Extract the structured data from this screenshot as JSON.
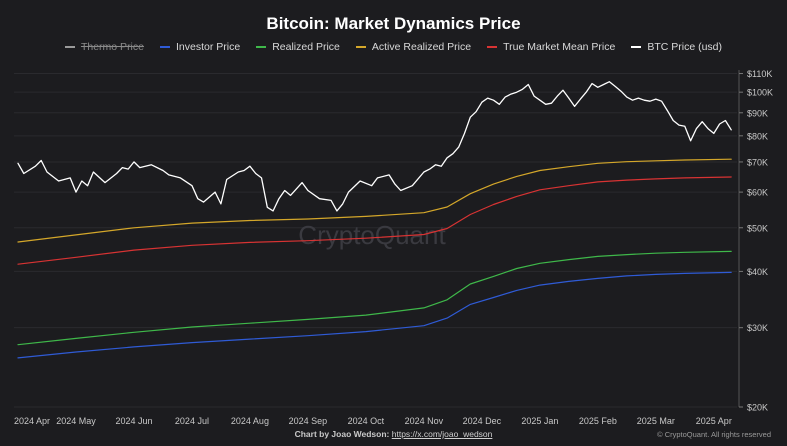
{
  "chart_data": {
    "type": "line",
    "title": "Bitcoin: Market Dynamics Price",
    "watermark": "CryptoQuant",
    "y_scale": "log",
    "ylim": [
      20000,
      112000
    ],
    "xlim": [
      0,
      12.4
    ],
    "x_ticks": [
      "2024 Apr",
      "2024 May",
      "2024 Jun",
      "2024 Jul",
      "2024 Aug",
      "2024 Sep",
      "2024 Oct",
      "2024 Nov",
      "2024 Dec",
      "2025 Jan",
      "2025 Feb",
      "2025 Mar",
      "2025 Apr"
    ],
    "y_ticks": [
      {
        "value": 110000,
        "label": "$110K"
      },
      {
        "value": 100000,
        "label": "$100K"
      },
      {
        "value": 90000,
        "label": "$90K"
      },
      {
        "value": 80000,
        "label": "$80K"
      },
      {
        "value": 70000,
        "label": "$70K"
      },
      {
        "value": 60000,
        "label": "$60K"
      },
      {
        "value": 50000,
        "label": "$50K"
      },
      {
        "value": 40000,
        "label": "$40K"
      },
      {
        "value": 30000,
        "label": "$30K"
      },
      {
        "value": 20000,
        "label": "$20K"
      }
    ],
    "series": [
      {
        "name": "Thermo Price",
        "color": "#9a9a9a",
        "hidden": true,
        "points": []
      },
      {
        "name": "Investor Price",
        "color": "#2f5bd6",
        "hidden": false,
        "points": [
          [
            0,
            25700
          ],
          [
            1,
            26500
          ],
          [
            2,
            27200
          ],
          [
            3,
            27800
          ],
          [
            4,
            28300
          ],
          [
            5,
            28800
          ],
          [
            6,
            29400
          ],
          [
            7,
            30300
          ],
          [
            7.4,
            31500
          ],
          [
            7.8,
            33800
          ],
          [
            8.2,
            35000
          ],
          [
            8.6,
            36300
          ],
          [
            9,
            37300
          ],
          [
            9.5,
            38000
          ],
          [
            10,
            38600
          ],
          [
            10.5,
            39100
          ],
          [
            11,
            39400
          ],
          [
            11.5,
            39600
          ],
          [
            12.3,
            39800
          ]
        ]
      },
      {
        "name": "Realized Price",
        "color": "#3fb84a",
        "hidden": false,
        "points": [
          [
            0,
            27500
          ],
          [
            1,
            28400
          ],
          [
            2,
            29300
          ],
          [
            3,
            30100
          ],
          [
            4,
            30700
          ],
          [
            5,
            31300
          ],
          [
            6,
            32000
          ],
          [
            7,
            33200
          ],
          [
            7.4,
            34600
          ],
          [
            7.8,
            37500
          ],
          [
            8.2,
            39000
          ],
          [
            8.6,
            40600
          ],
          [
            9,
            41700
          ],
          [
            9.5,
            42500
          ],
          [
            10,
            43200
          ],
          [
            10.5,
            43600
          ],
          [
            11,
            43900
          ],
          [
            11.5,
            44100
          ],
          [
            12.3,
            44300
          ]
        ]
      },
      {
        "name": "Active Realized Price",
        "color": "#d4a72a",
        "hidden": false,
        "points": [
          [
            0,
            46500
          ],
          [
            1,
            48200
          ],
          [
            2,
            50000
          ],
          [
            3,
            51200
          ],
          [
            4,
            51900
          ],
          [
            5,
            52300
          ],
          [
            6,
            53000
          ],
          [
            7,
            54000
          ],
          [
            7.4,
            55600
          ],
          [
            7.8,
            59500
          ],
          [
            8.2,
            62500
          ],
          [
            8.6,
            65000
          ],
          [
            9,
            67000
          ],
          [
            9.5,
            68300
          ],
          [
            10,
            69500
          ],
          [
            10.5,
            70100
          ],
          [
            11,
            70400
          ],
          [
            11.5,
            70700
          ],
          [
            12.3,
            71000
          ]
        ]
      },
      {
        "name": "True Market Mean Price",
        "color": "#d83333",
        "hidden": false,
        "points": [
          [
            0,
            41500
          ],
          [
            1,
            43000
          ],
          [
            2,
            44600
          ],
          [
            3,
            45700
          ],
          [
            4,
            46400
          ],
          [
            5,
            46800
          ],
          [
            6,
            47400
          ],
          [
            7,
            48300
          ],
          [
            7.4,
            49800
          ],
          [
            7.8,
            53500
          ],
          [
            8.2,
            56300
          ],
          [
            8.6,
            58700
          ],
          [
            9,
            60700
          ],
          [
            9.5,
            62000
          ],
          [
            10,
            63200
          ],
          [
            10.5,
            63800
          ],
          [
            11,
            64200
          ],
          [
            11.5,
            64500
          ],
          [
            12.3,
            64800
          ]
        ]
      },
      {
        "name": "BTC Price (usd)",
        "color": "#ffffff",
        "hidden": false,
        "points": [
          [
            0,
            69500
          ],
          [
            0.1,
            66000
          ],
          [
            0.3,
            68500
          ],
          [
            0.4,
            70500
          ],
          [
            0.5,
            66500
          ],
          [
            0.7,
            63500
          ],
          [
            0.9,
            64500
          ],
          [
            1.0,
            60000
          ],
          [
            1.1,
            63500
          ],
          [
            1.2,
            62000
          ],
          [
            1.3,
            66500
          ],
          [
            1.5,
            63000
          ],
          [
            1.7,
            66000
          ],
          [
            1.8,
            68000
          ],
          [
            1.9,
            67500
          ],
          [
            2.0,
            70000
          ],
          [
            2.1,
            68000
          ],
          [
            2.3,
            69000
          ],
          [
            2.5,
            67000
          ],
          [
            2.6,
            65500
          ],
          [
            2.8,
            64500
          ],
          [
            3.0,
            62000
          ],
          [
            3.1,
            58000
          ],
          [
            3.2,
            57000
          ],
          [
            3.4,
            60000
          ],
          [
            3.5,
            56500
          ],
          [
            3.6,
            64000
          ],
          [
            3.8,
            66500
          ],
          [
            3.9,
            67000
          ],
          [
            4.0,
            68500
          ],
          [
            4.1,
            66000
          ],
          [
            4.2,
            64500
          ],
          [
            4.3,
            55500
          ],
          [
            4.4,
            54500
          ],
          [
            4.5,
            58000
          ],
          [
            4.6,
            60500
          ],
          [
            4.7,
            59000
          ],
          [
            4.9,
            63000
          ],
          [
            5.0,
            60500
          ],
          [
            5.2,
            58000
          ],
          [
            5.4,
            57500
          ],
          [
            5.5,
            54500
          ],
          [
            5.6,
            56500
          ],
          [
            5.7,
            60000
          ],
          [
            5.9,
            63500
          ],
          [
            6.1,
            62000
          ],
          [
            6.2,
            64500
          ],
          [
            6.4,
            65500
          ],
          [
            6.5,
            62500
          ],
          [
            6.6,
            60500
          ],
          [
            6.8,
            62000
          ],
          [
            7.0,
            66500
          ],
          [
            7.1,
            67500
          ],
          [
            7.2,
            69000
          ],
          [
            7.3,
            68500
          ],
          [
            7.4,
            71500
          ],
          [
            7.5,
            73000
          ],
          [
            7.6,
            75500
          ],
          [
            7.7,
            81000
          ],
          [
            7.8,
            88000
          ],
          [
            7.9,
            90500
          ],
          [
            8.0,
            95000
          ],
          [
            8.1,
            97000
          ],
          [
            8.2,
            96000
          ],
          [
            8.3,
            94000
          ],
          [
            8.4,
            97500
          ],
          [
            8.5,
            99000
          ],
          [
            8.6,
            100000
          ],
          [
            8.7,
            101500
          ],
          [
            8.8,
            104000
          ],
          [
            8.9,
            98000
          ],
          [
            9.0,
            96000
          ],
          [
            9.1,
            94000
          ],
          [
            9.2,
            94500
          ],
          [
            9.3,
            98000
          ],
          [
            9.4,
            101000
          ],
          [
            9.5,
            97000
          ],
          [
            9.6,
            93000
          ],
          [
            9.7,
            96500
          ],
          [
            9.8,
            100000
          ],
          [
            9.9,
            104500
          ],
          [
            10.0,
            102500
          ],
          [
            10.1,
            104000
          ],
          [
            10.2,
            105500
          ],
          [
            10.3,
            103000
          ],
          [
            10.4,
            100500
          ],
          [
            10.5,
            97500
          ],
          [
            10.6,
            96000
          ],
          [
            10.7,
            97000
          ],
          [
            10.8,
            96000
          ],
          [
            10.9,
            95500
          ],
          [
            11.0,
            96500
          ],
          [
            11.1,
            95500
          ],
          [
            11.2,
            91000
          ],
          [
            11.3,
            86500
          ],
          [
            11.4,
            84500
          ],
          [
            11.5,
            84000
          ],
          [
            11.6,
            78000
          ],
          [
            11.7,
            83000
          ],
          [
            11.8,
            86000
          ],
          [
            11.9,
            83000
          ],
          [
            12.0,
            81000
          ],
          [
            12.1,
            85000
          ],
          [
            12.2,
            86500
          ],
          [
            12.3,
            82500
          ]
        ]
      }
    ]
  },
  "footer": {
    "credit_prefix": "Chart by Joao Wedson:",
    "credit_link": "https://x.com/joao_wedson",
    "copyright": "© CryptoQuant. All rights reserved"
  }
}
